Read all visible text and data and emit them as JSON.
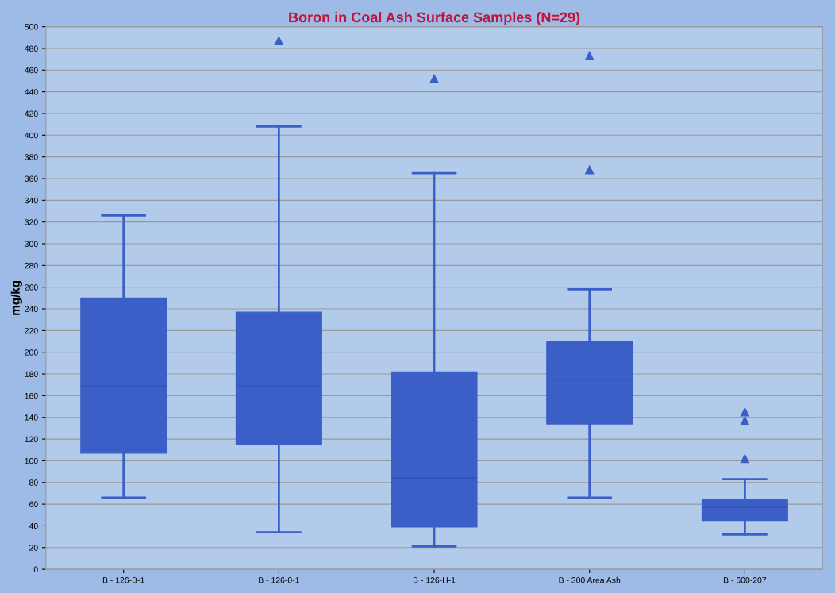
{
  "chart_data": {
    "type": "box",
    "title": "Boron in Coal Ash Surface Samples (N=29)",
    "ylabel": "mg/kg",
    "categories": [
      "B - 126-B-1",
      "B - 126-0-1",
      "B - 126-H-1",
      "B - 300 Area Ash",
      "B - 600-207"
    ],
    "boxes": [
      {
        "low": 66,
        "q1": 107,
        "median": 169,
        "q3": 250,
        "high": 326
      },
      {
        "low": 34,
        "q1": 115,
        "median": 169,
        "q3": 237,
        "high": 408,
        "outliers": [
          487
        ]
      },
      {
        "low": 21,
        "q1": 39,
        "median": 84,
        "q3": 182,
        "high": 365,
        "outliers": [
          452
        ]
      },
      {
        "low": 66,
        "q1": 134,
        "median": 175,
        "q3": 210,
        "high": 258,
        "outliers": [
          473,
          368
        ]
      },
      {
        "low": 32,
        "q1": 45,
        "median": 57,
        "q3": 64,
        "high": 83,
        "outliers": [
          145,
          137,
          102
        ]
      }
    ],
    "color": "#3b5fc6",
    "marker": "triangle",
    "grid": "y",
    "ylim": [
      0,
      500
    ],
    "yticks": [
      0,
      20,
      40,
      60,
      80,
      100,
      120,
      140,
      160,
      180,
      200,
      220,
      240,
      260,
      280,
      300,
      320,
      340,
      360,
      380,
      400,
      420,
      440,
      460,
      480,
      500
    ]
  }
}
